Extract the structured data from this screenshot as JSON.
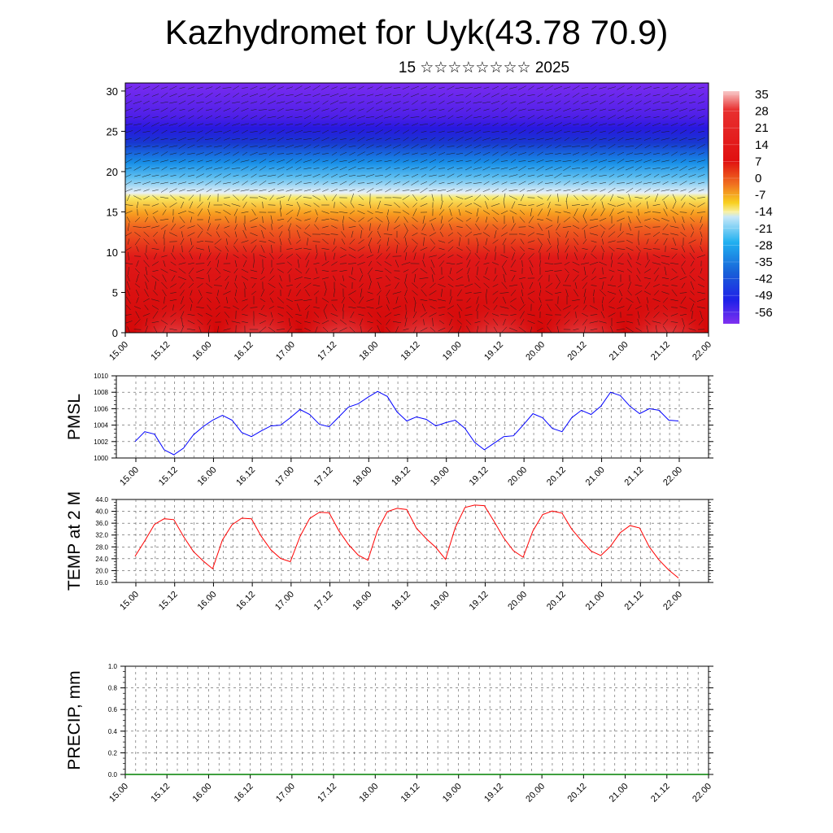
{
  "title": "Kazhydromet for Uyk(43.78 70.9)",
  "subtitle": "15 ☆☆☆☆☆☆☆☆ 2025",
  "chart_data": [
    {
      "type": "heatmap",
      "title": "",
      "ylim": [
        0,
        31
      ],
      "y_ticks": [
        "0",
        "5",
        "10",
        "15",
        "20",
        "25",
        "30"
      ],
      "x_ticks": [
        "15.00",
        "15.12",
        "16.00",
        "16.12",
        "17.00",
        "17.12",
        "18.00",
        "18.12",
        "19.00",
        "19.12",
        "20.00",
        "20.12",
        "21.00",
        "21.12",
        "22.00"
      ],
      "colorbar_labels": [
        "35",
        "28",
        "21",
        "14",
        "7",
        "0",
        "-7",
        "-14",
        "-21",
        "-28",
        "-35",
        "-42",
        "-49",
        "-56"
      ],
      "colors": {
        "top": "#7a2cf0",
        "blue": "#2020e0",
        "cyan": "#30b8f0",
        "yellow": "#f8e020",
        "orange": "#f08020",
        "red": "#e01010",
        "pink": "#f8b8c0"
      },
      "overlay": "wind-vectors"
    },
    {
      "type": "line",
      "ylabel": "PMSL",
      "ylim": [
        1000,
        1010
      ],
      "y_ticks": [
        "1000",
        "1002",
        "1004",
        "1006",
        "1008",
        "1010"
      ],
      "x_ticks": [
        "15.00",
        "15.12",
        "16.00",
        "16.12",
        "17.00",
        "17.12",
        "18.00",
        "18.12",
        "19.00",
        "19.12",
        "20.00",
        "20.12",
        "21.00",
        "21.12",
        "22.00"
      ],
      "color": "#0000ff",
      "values": [
        1002.0,
        1003.2,
        1002.9,
        1001.0,
        1000.4,
        1001.2,
        1002.8,
        1003.8,
        1004.6,
        1005.2,
        1004.6,
        1003.1,
        1002.6,
        1003.3,
        1003.9,
        1004.0,
        1004.9,
        1005.9,
        1005.3,
        1004.1,
        1003.8,
        1005.0,
        1006.2,
        1006.6,
        1007.4,
        1008.1,
        1007.5,
        1005.6,
        1004.5,
        1005.0,
        1004.7,
        1003.9,
        1004.3,
        1004.6,
        1003.6,
        1001.9,
        1001.0,
        1001.8,
        1002.6,
        1002.7,
        1004.0,
        1005.4,
        1004.9,
        1003.6,
        1003.2,
        1004.9,
        1005.8,
        1005.3,
        1006.3,
        1008.0,
        1007.6,
        1006.3,
        1005.4,
        1006.0,
        1005.8,
        1004.6,
        1004.5
      ]
    },
    {
      "type": "line",
      "ylabel": "TEMP at 2 M",
      "ylim": [
        16,
        44
      ],
      "y_ticks": [
        "16.0",
        "20.0",
        "24.0",
        "28.0",
        "32.0",
        "36.0",
        "40.0",
        "44.0"
      ],
      "x_ticks": [
        "15.00",
        "15.12",
        "16.00",
        "16.12",
        "17.00",
        "17.12",
        "18.00",
        "18.12",
        "19.00",
        "19.12",
        "20.00",
        "20.12",
        "21.00",
        "21.12",
        "22.00"
      ],
      "color": "#ff0000",
      "values": [
        24.8,
        30.0,
        35.6,
        37.5,
        37.2,
        31.5,
        26.5,
        23.3,
        20.6,
        30.3,
        35.5,
        37.7,
        37.5,
        31.6,
        27.0,
        24.1,
        23.0,
        31.5,
        37.6,
        39.7,
        39.5,
        33.5,
        28.8,
        25.2,
        23.5,
        33.7,
        39.9,
        41.0,
        40.6,
        34.3,
        30.8,
        27.8,
        23.8,
        34.5,
        41.3,
        42.1,
        41.9,
        36.6,
        31.0,
        26.7,
        24.5,
        33.4,
        38.9,
        40.1,
        39.4,
        34.0,
        30.1,
        26.6,
        25.1,
        28.2,
        32.8,
        35.2,
        34.4,
        28.0,
        23.6,
        20.2,
        17.5
      ]
    },
    {
      "type": "line",
      "ylabel": "PRECIP, mm",
      "ylim": [
        0,
        1
      ],
      "y_ticks": [
        "0.0",
        "0.2",
        "0.4",
        "0.6",
        "0.8",
        "1.0"
      ],
      "x_ticks": [
        "15.00",
        "15.12",
        "16.00",
        "16.12",
        "17.00",
        "17.12",
        "18.00",
        "18.12",
        "19.00",
        "19.12",
        "20.00",
        "20.12",
        "21.00",
        "21.12",
        "22.00"
      ],
      "color": "#008000",
      "values": [
        0,
        0,
        0,
        0,
        0,
        0,
        0,
        0,
        0,
        0,
        0,
        0,
        0,
        0,
        0,
        0,
        0,
        0,
        0,
        0,
        0,
        0,
        0,
        0,
        0,
        0,
        0,
        0,
        0,
        0,
        0,
        0,
        0,
        0,
        0,
        0,
        0,
        0,
        0,
        0,
        0,
        0,
        0,
        0,
        0,
        0,
        0,
        0,
        0,
        0,
        0,
        0,
        0,
        0,
        0,
        0,
        0,
        0,
        0
      ]
    }
  ]
}
